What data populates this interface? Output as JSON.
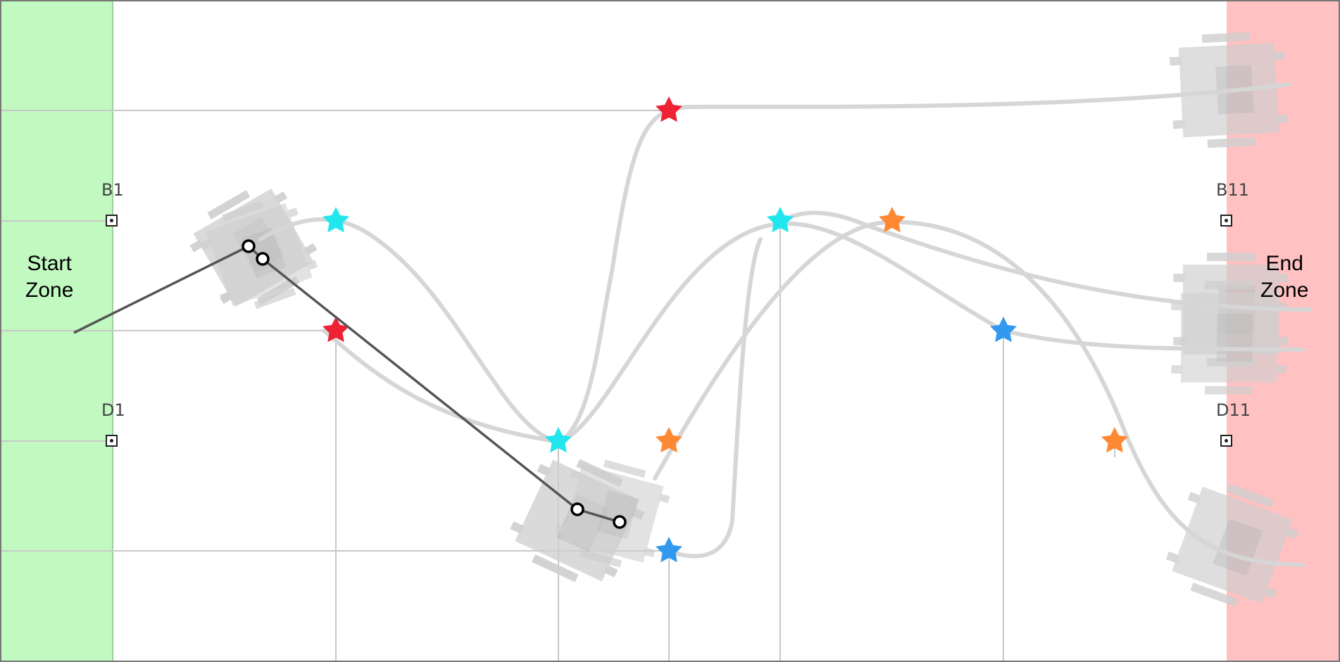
{
  "zones": {
    "start": {
      "line1": "Start",
      "line2": "Zone"
    },
    "end": {
      "line1": "End",
      "line2": "Zone"
    }
  },
  "markers": {
    "b1": "B1",
    "b11": "B11",
    "d1": "D1",
    "d11": "D11"
  },
  "colors": {
    "start_zone": "#c1f9c1",
    "end_zone": "#ffc1c1",
    "grid": "#c8c8c8",
    "path": "#d6d6d6",
    "robot_ghost": "#cfcfcf",
    "active_segment": "#555555",
    "star_red": "#ee2233",
    "star_cyan": "#22e6ee",
    "star_orange": "#ff8833",
    "star_blue": "#3399ee"
  },
  "stars": [
    {
      "color": "red",
      "name": "star-red-top"
    },
    {
      "color": "cyan",
      "name": "star-cyan-b3"
    },
    {
      "color": "red",
      "name": "star-red-c3"
    },
    {
      "color": "cyan",
      "name": "star-cyan-d5"
    },
    {
      "color": "orange",
      "name": "star-orange-d6"
    },
    {
      "color": "blue",
      "name": "star-blue-e6"
    },
    {
      "color": "cyan",
      "name": "star-cyan-b7"
    },
    {
      "color": "orange",
      "name": "star-orange-b8"
    },
    {
      "color": "blue",
      "name": "star-blue-c9"
    },
    {
      "color": "orange",
      "name": "star-orange-d10"
    }
  ],
  "icons": {
    "waypoint": "waypoint-handle-icon",
    "robot": "robot-ghost-icon",
    "star": "star-icon"
  }
}
